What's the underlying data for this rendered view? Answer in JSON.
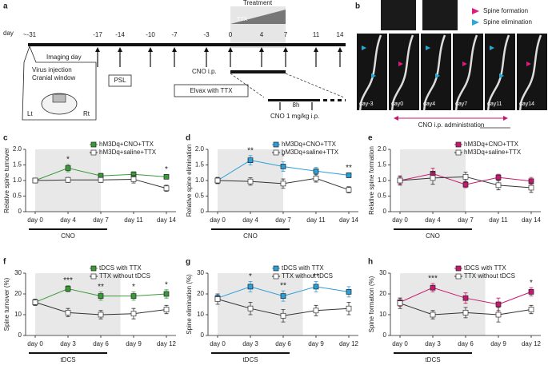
{
  "panel_a": {
    "label": "a",
    "day_label": "day",
    "days": [
      "~-31",
      "-17",
      "-14",
      "-10",
      "-7",
      "-3",
      "0",
      "4",
      "7",
      "11",
      "14"
    ],
    "treatment": "Treatment",
    "ttx": "TTX",
    "imaging_day": "Imaging day",
    "virus_injection": "Virus injection",
    "cranial_window": "Cranial window",
    "left": "Lt",
    "right": "Rt",
    "psl": "PSL",
    "cno_ip": "CNO i.p.",
    "elvax": "Elvax with TTX",
    "interval": "8h",
    "cno_dose": "CNO 1 mg/kg i.p."
  },
  "panel_b": {
    "label": "b",
    "legend": [
      {
        "text": "Spine formation",
        "color": "#e0197d"
      },
      {
        "text": "Spine elimination",
        "color": "#2aa8d8"
      }
    ],
    "images": [
      "day-3",
      "day0",
      "day4",
      "day7",
      "day11",
      "day14"
    ],
    "caption": "CNO i.p. administration"
  },
  "chart_data": [
    {
      "type": "line",
      "panel": "c",
      "ylabel": "Relative spine turnover",
      "categories": [
        "day 0",
        "day 4",
        "day 7",
        "day 11",
        "day 14"
      ],
      "ylim": [
        0,
        2
      ],
      "yticks": [
        0,
        0.5,
        {
          "value": 1,
          "label": "1.0"
        },
        1.5,
        {
          "value": 2,
          "label": "2.0"
        }
      ],
      "bar_label": "CNO",
      "significance": [
        null,
        "*",
        null,
        null,
        "*"
      ],
      "series": [
        {
          "name": "hM3Dq+CNO+TTX",
          "color": "#3a9a3a",
          "open": false,
          "values": [
            1.0,
            1.4,
            1.15,
            1.2,
            1.12
          ],
          "errors": [
            0.08,
            0.12,
            0.08,
            0.08,
            0.07
          ]
        },
        {
          "name": "hM3Dq+saline+TTX",
          "color": "#333333",
          "open": true,
          "values": [
            1.0,
            1.02,
            1.02,
            1.04,
            0.75
          ],
          "errors": [
            0.07,
            0.08,
            0.08,
            0.12,
            0.1
          ]
        }
      ]
    },
    {
      "type": "line",
      "panel": "d",
      "ylabel": "Relative spine elimination",
      "categories": [
        "day 0",
        "day 4",
        "day 7",
        "day 11",
        "day 14"
      ],
      "ylim": [
        0,
        2
      ],
      "yticks": [
        0,
        0.5,
        {
          "value": 1,
          "label": "1.0"
        },
        1.5,
        {
          "value": 2,
          "label": "2.0"
        }
      ],
      "bar_label": "CNO",
      "significance": [
        null,
        "**",
        "*",
        null,
        "**"
      ],
      "series": [
        {
          "name": "hM3Dq+CNO+TTX",
          "color": "#2c9ed8",
          "open": false,
          "values": [
            1.0,
            1.65,
            1.45,
            1.3,
            1.17
          ],
          "errors": [
            0.1,
            0.15,
            0.15,
            0.12,
            0.08
          ]
        },
        {
          "name": "hM3Dq+saline+TTX",
          "color": "#333333",
          "open": true,
          "values": [
            1.0,
            0.97,
            0.9,
            1.07,
            0.7
          ],
          "errors": [
            0.1,
            0.12,
            0.15,
            0.12,
            0.1
          ]
        }
      ]
    },
    {
      "type": "line",
      "panel": "e",
      "ylabel": "Relative spine formation",
      "categories": [
        "day 0",
        "day 4",
        "day 7",
        "day 11",
        "day 14"
      ],
      "ylim": [
        0,
        2
      ],
      "yticks": [
        0,
        0.5,
        {
          "value": 1,
          "label": "1.0"
        },
        1.5,
        {
          "value": 2,
          "label": "2.0"
        }
      ],
      "bar_label": "CNO",
      "significance": [
        null,
        null,
        null,
        null,
        null
      ],
      "series": [
        {
          "name": "hM3Dq+CNO+TTX",
          "color": "#c8186e",
          "open": false,
          "values": [
            1.0,
            1.22,
            0.87,
            1.1,
            0.98
          ],
          "errors": [
            0.12,
            0.18,
            0.1,
            0.1,
            0.12
          ]
        },
        {
          "name": "hM3Dq+saline+TTX",
          "color": "#333333",
          "open": true,
          "values": [
            1.0,
            1.08,
            1.12,
            0.85,
            0.77
          ],
          "errors": [
            0.15,
            0.2,
            0.15,
            0.15,
            0.15
          ]
        }
      ]
    },
    {
      "type": "line",
      "panel": "f",
      "ylabel": "Spine turnover (%)",
      "categories": [
        "day 0",
        "day 3",
        "day 6",
        "day 9",
        "day 12"
      ],
      "ylim": [
        0,
        30
      ],
      "yticks": [
        0,
        10,
        20,
        30
      ],
      "bar_label": "tDCS",
      "significance": [
        null,
        "***",
        "**",
        "*",
        "*"
      ],
      "series": [
        {
          "name": "tDCS with TTX",
          "color": "#3a9a3a",
          "open": false,
          "values": [
            16,
            22.5,
            19,
            19,
            20
          ],
          "errors": [
            1.5,
            1.5,
            2,
            2,
            2
          ]
        },
        {
          "name": "TTX without tDCS",
          "color": "#333333",
          "open": true,
          "values": [
            16,
            11,
            10,
            10.5,
            12.5
          ],
          "errors": [
            1.5,
            2,
            2,
            2.5,
            2
          ]
        }
      ]
    },
    {
      "type": "line",
      "panel": "g",
      "ylabel": "Spine elimination (%)",
      "categories": [
        "day 0",
        "day 3",
        "day 6",
        "day 9",
        "day 12"
      ],
      "ylim": [
        0,
        30
      ],
      "yticks": [
        0,
        10,
        20,
        30
      ],
      "bar_label": "tDCS",
      "significance": [
        null,
        "*",
        "**",
        "**",
        null
      ],
      "series": [
        {
          "name": "tDCS with TTX",
          "color": "#2c9ed8",
          "open": false,
          "values": [
            18,
            23.5,
            19,
            23.5,
            21
          ],
          "errors": [
            1.5,
            2.5,
            2.5,
            2.5,
            2.5
          ]
        },
        {
          "name": "TTX without tDCS",
          "color": "#333333",
          "open": true,
          "values": [
            17.5,
            13,
            9.5,
            12,
            13
          ],
          "errors": [
            2.5,
            3,
            3,
            2.5,
            3
          ]
        }
      ]
    },
    {
      "type": "line",
      "panel": "h",
      "ylabel": "Spine formation (%)",
      "categories": [
        "day 0",
        "day 3",
        "day 6",
        "day 9",
        "day 12"
      ],
      "ylim": [
        0,
        30
      ],
      "yticks": [
        0,
        10,
        20,
        30
      ],
      "bar_label": "tDCS",
      "significance": [
        null,
        "***",
        null,
        null,
        "*"
      ],
      "series": [
        {
          "name": "tDCS with TTX",
          "color": "#c8186e",
          "open": false,
          "values": [
            16,
            23,
            18,
            15,
            21
          ],
          "errors": [
            2,
            2,
            2.5,
            3,
            2
          ]
        },
        {
          "name": "TTX without tDCS",
          "color": "#333333",
          "open": true,
          "values": [
            15.5,
            10,
            11,
            10,
            12.5
          ],
          "errors": [
            2.5,
            2,
            2.5,
            3.5,
            2
          ]
        }
      ]
    }
  ]
}
